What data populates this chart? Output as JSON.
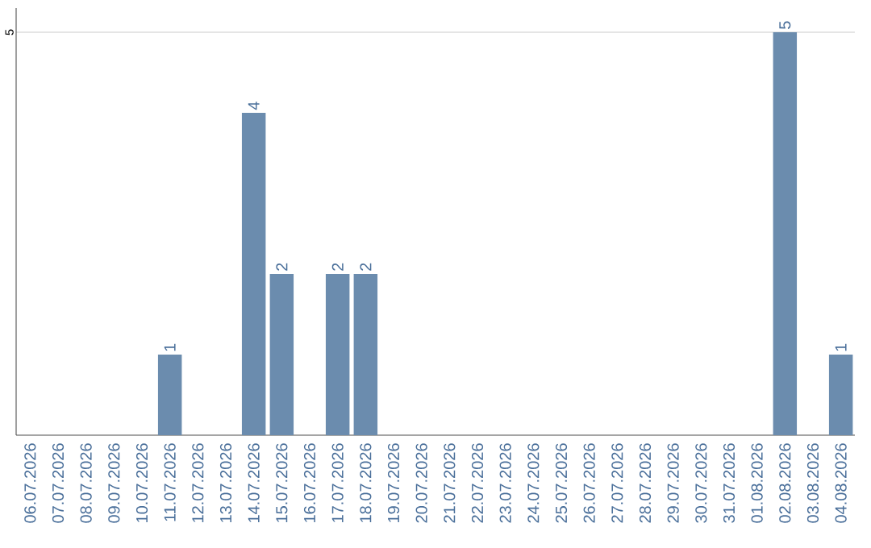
{
  "chart_data": {
    "type": "bar",
    "categories": [
      "06.07.2026",
      "07.07.2026",
      "08.07.2026",
      "09.07.2026",
      "10.07.2026",
      "11.07.2026",
      "12.07.2026",
      "13.07.2026",
      "14.07.2026",
      "15.07.2026",
      "16.07.2026",
      "17.07.2026",
      "18.07.2026",
      "19.07.2026",
      "20.07.2026",
      "21.07.2026",
      "22.07.2026",
      "23.07.2026",
      "24.07.2026",
      "25.07.2026",
      "26.07.2026",
      "27.07.2026",
      "28.07.2026",
      "29.07.2026",
      "30.07.2026",
      "31.07.2026",
      "01.08.2026",
      "02.08.2026",
      "03.08.2026",
      "04.08.2026"
    ],
    "values": [
      0,
      0,
      0,
      0,
      0,
      1,
      0,
      0,
      4,
      2,
      0,
      2,
      2,
      0,
      0,
      0,
      0,
      0,
      0,
      0,
      0,
      0,
      0,
      0,
      0,
      0,
      0,
      5,
      0,
      1
    ],
    "value_labels": [
      null,
      null,
      null,
      null,
      null,
      "1",
      null,
      null,
      "4",
      "2",
      null,
      "2",
      "2",
      null,
      null,
      null,
      null,
      null,
      null,
      null,
      null,
      null,
      null,
      null,
      null,
      null,
      null,
      "5",
      null,
      "1"
    ],
    "color": "#6b8cae",
    "ylim": [
      0,
      5.3
    ],
    "yticks": [
      {
        "value": 5,
        "label": "5"
      }
    ],
    "grid": "y"
  }
}
